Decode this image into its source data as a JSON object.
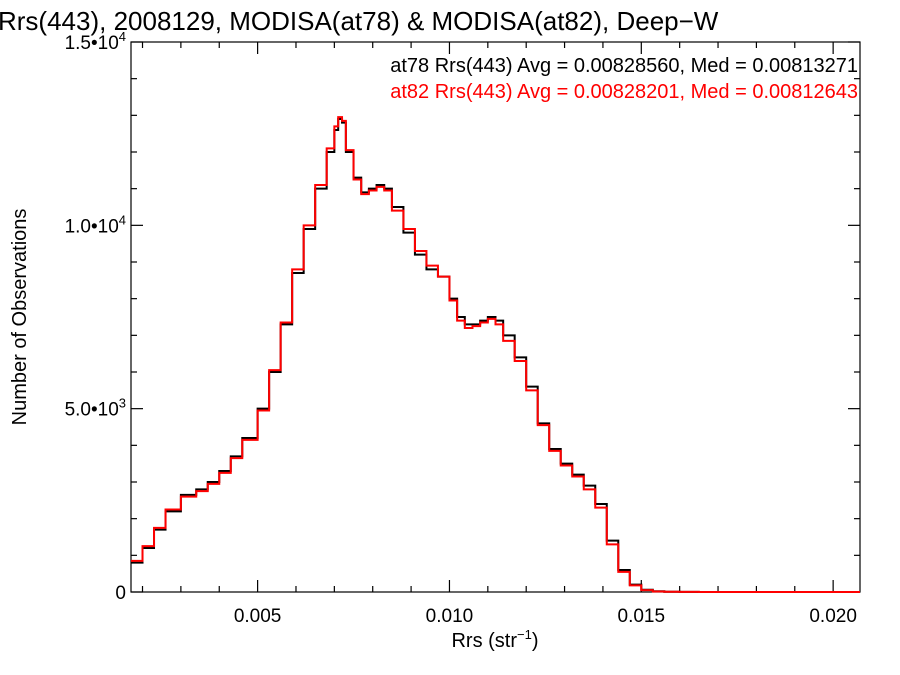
{
  "chart_data": {
    "type": "line",
    "title": "Rrs(443), 2008129, MODISA(at78) & MODISA(at82), Deep−W",
    "xlabel_main": "Rrs (str",
    "xlabel_sup": "−1",
    "xlabel_end": ")",
    "ylabel": "Number of Observations",
    "xlim": [
      0.0017,
      0.0207
    ],
    "ylim": [
      0,
      15000
    ],
    "x_ticks": [
      {
        "value": 0.005,
        "label": "0.005"
      },
      {
        "value": 0.01,
        "label": "0.010"
      },
      {
        "value": 0.015,
        "label": "0.015"
      },
      {
        "value": 0.02,
        "label": "0.020"
      }
    ],
    "x_minor_step": 0.001,
    "y_ticks": [
      {
        "value": 0,
        "mant": "0",
        "exp": ""
      },
      {
        "value": 5000,
        "mant": "5.0•10",
        "exp": "3"
      },
      {
        "value": 10000,
        "mant": "1.0•10",
        "exp": "4"
      },
      {
        "value": 15000,
        "mant": "1.5•10",
        "exp": "4"
      }
    ],
    "y_minor_step": 1000,
    "grid": false,
    "annotations": [
      {
        "text": "at78 Rrs(443) Avg = 0.00828560, Med = 0.00813271",
        "color": "#000000"
      },
      {
        "text": "at82 Rrs(443) Avg = 0.00828201, Med = 0.00812643",
        "color": "#ff0000"
      }
    ],
    "series": [
      {
        "name": "at78",
        "color": "#000000",
        "x": [
          0.0017,
          0.002,
          0.0023,
          0.0026,
          0.003,
          0.0034,
          0.0037,
          0.004,
          0.0043,
          0.0046,
          0.005,
          0.0053,
          0.0056,
          0.0059,
          0.0062,
          0.0065,
          0.0068,
          0.007,
          0.0071,
          0.0072,
          0.0073,
          0.0075,
          0.0077,
          0.0079,
          0.0081,
          0.0083,
          0.0085,
          0.0088,
          0.0091,
          0.0094,
          0.0097,
          0.01,
          0.0102,
          0.0104,
          0.0106,
          0.0108,
          0.011,
          0.0112,
          0.0114,
          0.0117,
          0.012,
          0.0123,
          0.0126,
          0.0129,
          0.0132,
          0.0135,
          0.0138,
          0.0141,
          0.0144,
          0.0147,
          0.015,
          0.0153,
          0.0156,
          0.016,
          0.0165,
          0.017,
          0.018,
          0.019,
          0.02,
          0.0207
        ],
        "y": [
          800,
          1200,
          1700,
          2200,
          2650,
          2800,
          3000,
          3300,
          3700,
          4200,
          5000,
          6000,
          7300,
          8700,
          9900,
          11000,
          12000,
          12600,
          12900,
          12800,
          12000,
          11300,
          10900,
          11000,
          11100,
          11000,
          10500,
          9800,
          9200,
          8800,
          8600,
          8000,
          7500,
          7300,
          7300,
          7400,
          7500,
          7400,
          7000,
          6400,
          5600,
          4600,
          3900,
          3500,
          3200,
          2900,
          2400,
          1400,
          600,
          200,
          60,
          20,
          8,
          3,
          1,
          0,
          0,
          0,
          0,
          0
        ]
      },
      {
        "name": "at82",
        "color": "#ff0000",
        "x": [
          0.0017,
          0.002,
          0.0023,
          0.0026,
          0.003,
          0.0034,
          0.0037,
          0.004,
          0.0043,
          0.0046,
          0.005,
          0.0053,
          0.0056,
          0.0059,
          0.0062,
          0.0065,
          0.0068,
          0.007,
          0.0071,
          0.0072,
          0.0073,
          0.0075,
          0.0077,
          0.0079,
          0.0081,
          0.0083,
          0.0085,
          0.0088,
          0.0091,
          0.0094,
          0.0097,
          0.01,
          0.0102,
          0.0104,
          0.0106,
          0.0108,
          0.011,
          0.0112,
          0.0114,
          0.0117,
          0.012,
          0.0123,
          0.0126,
          0.0129,
          0.0132,
          0.0135,
          0.0138,
          0.0141,
          0.0144,
          0.0147,
          0.015,
          0.0153,
          0.0156,
          0.016,
          0.0165,
          0.017,
          0.018,
          0.019,
          0.02,
          0.0207
        ],
        "y": [
          850,
          1250,
          1750,
          2250,
          2600,
          2750,
          2950,
          3250,
          3650,
          4150,
          4950,
          6050,
          7350,
          8800,
          10000,
          11100,
          12100,
          12700,
          12950,
          12850,
          12050,
          11250,
          10850,
          10950,
          11050,
          10950,
          10400,
          9900,
          9300,
          8900,
          8600,
          7950,
          7400,
          7200,
          7250,
          7350,
          7450,
          7300,
          6850,
          6300,
          5500,
          4550,
          3850,
          3450,
          3150,
          2800,
          2300,
          1300,
          550,
          180,
          50,
          15,
          6,
          2,
          1,
          0,
          0,
          0,
          0,
          0
        ]
      }
    ]
  }
}
